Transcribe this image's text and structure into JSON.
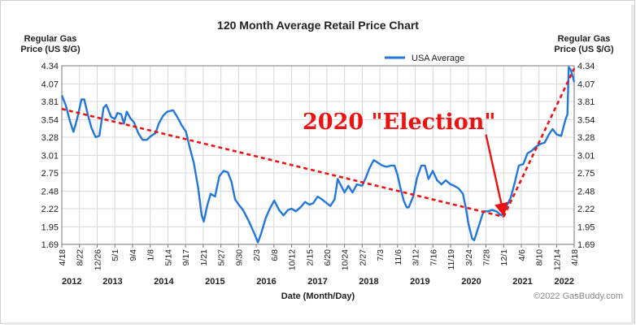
{
  "chart_data": {
    "type": "line",
    "title": "120 Month Average Retail Price Chart",
    "ylabel_left": "Regular Gas\nPrice (US $/G)",
    "ylabel_right": "Regular Gas\nPrice (US $/G)",
    "xlabel": "Date (Month/Day)",
    "legend": {
      "label": "USA Average",
      "placement": "top-center"
    },
    "ylim": [
      1.69,
      4.34
    ],
    "yticks": [
      "4.34",
      "4.07",
      "3.81",
      "3.54",
      "3.28",
      "3.01",
      "2.75",
      "2.48",
      "2.22",
      "1.95",
      "1.69"
    ],
    "ytick_values": [
      4.34,
      4.07,
      3.81,
      3.54,
      3.28,
      3.01,
      2.75,
      2.48,
      2.22,
      1.95,
      1.69
    ],
    "xlim": [
      "2012-04-18",
      "2022-04-18"
    ],
    "xtick_labels": [
      "4/18",
      "8/22",
      "12/26",
      "5/1",
      "9/4",
      "1/8",
      "5/14",
      "9/17",
      "1/21",
      "5/27",
      "9/30",
      "2/3",
      "6/8",
      "10/12",
      "2/15",
      "6/20",
      "10/24",
      "2/27",
      "7/3",
      "11/6",
      "3/12",
      "7/16",
      "11/19",
      "3/24",
      "7/28",
      "12/1",
      "4/6",
      "8/10",
      "12/14",
      "4/18"
    ],
    "xtick_dates": [
      "2012-04-18",
      "2012-08-22",
      "2012-12-26",
      "2013-05-01",
      "2013-09-04",
      "2014-01-08",
      "2014-05-14",
      "2014-09-17",
      "2015-01-21",
      "2015-05-27",
      "2015-09-30",
      "2016-02-03",
      "2016-06-08",
      "2016-10-12",
      "2017-02-15",
      "2017-06-20",
      "2017-10-24",
      "2018-02-27",
      "2018-07-03",
      "2018-11-06",
      "2019-03-12",
      "2019-07-16",
      "2019-11-19",
      "2020-03-24",
      "2020-07-28",
      "2020-12-01",
      "2021-04-06",
      "2021-08-10",
      "2021-12-14",
      "2022-04-18"
    ],
    "year_labels": [
      "2012",
      "2013",
      "2014",
      "2015",
      "2016",
      "2017",
      "2018",
      "2019",
      "2020",
      "2021",
      "2022"
    ],
    "year_positions": [
      "2012-04-18",
      "2013-04-15",
      "2014-04-15",
      "2015-04-15",
      "2016-04-15",
      "2017-04-15",
      "2018-04-15",
      "2019-04-15",
      "2020-04-15",
      "2021-04-15",
      "2022-04-18"
    ],
    "grid": true,
    "series": [
      {
        "name": "USA Average",
        "color": "#2277dd",
        "points": [
          [
            "2012-04-18",
            3.9
          ],
          [
            "2012-05-15",
            3.76
          ],
          [
            "2012-06-15",
            3.52
          ],
          [
            "2012-07-10",
            3.36
          ],
          [
            "2012-08-05",
            3.55
          ],
          [
            "2012-09-05",
            3.84
          ],
          [
            "2012-09-25",
            3.84
          ],
          [
            "2012-10-20",
            3.62
          ],
          [
            "2012-11-15",
            3.42
          ],
          [
            "2012-12-15",
            3.28
          ],
          [
            "2013-01-10",
            3.3
          ],
          [
            "2013-02-10",
            3.72
          ],
          [
            "2013-03-01",
            3.76
          ],
          [
            "2013-04-05",
            3.58
          ],
          [
            "2013-05-01",
            3.55
          ],
          [
            "2013-05-20",
            3.64
          ],
          [
            "2013-06-15",
            3.62
          ],
          [
            "2013-07-05",
            3.48
          ],
          [
            "2013-07-25",
            3.66
          ],
          [
            "2013-08-20",
            3.56
          ],
          [
            "2013-09-15",
            3.5
          ],
          [
            "2013-10-15",
            3.34
          ],
          [
            "2013-11-15",
            3.24
          ],
          [
            "2013-12-15",
            3.24
          ],
          [
            "2014-01-15",
            3.3
          ],
          [
            "2014-02-15",
            3.34
          ],
          [
            "2014-03-10",
            3.48
          ],
          [
            "2014-04-10",
            3.6
          ],
          [
            "2014-05-10",
            3.66
          ],
          [
            "2014-06-20",
            3.68
          ],
          [
            "2014-07-20",
            3.58
          ],
          [
            "2014-08-20",
            3.46
          ],
          [
            "2014-09-20",
            3.36
          ],
          [
            "2014-10-15",
            3.14
          ],
          [
            "2014-11-15",
            2.9
          ],
          [
            "2014-12-15",
            2.54
          ],
          [
            "2015-01-10",
            2.12
          ],
          [
            "2015-01-25",
            2.03
          ],
          [
            "2015-02-20",
            2.28
          ],
          [
            "2015-03-15",
            2.44
          ],
          [
            "2015-04-15",
            2.4
          ],
          [
            "2015-05-15",
            2.7
          ],
          [
            "2015-06-15",
            2.78
          ],
          [
            "2015-07-15",
            2.76
          ],
          [
            "2015-08-10",
            2.62
          ],
          [
            "2015-09-05",
            2.36
          ],
          [
            "2015-10-01",
            2.28
          ],
          [
            "2015-11-01",
            2.2
          ],
          [
            "2015-12-15",
            2.02
          ],
          [
            "2016-01-20",
            1.85
          ],
          [
            "2016-02-15",
            1.72
          ],
          [
            "2016-03-10",
            1.86
          ],
          [
            "2016-04-10",
            2.08
          ],
          [
            "2016-05-10",
            2.22
          ],
          [
            "2016-06-10",
            2.34
          ],
          [
            "2016-07-15",
            2.2
          ],
          [
            "2016-08-15",
            2.12
          ],
          [
            "2016-09-15",
            2.2
          ],
          [
            "2016-10-12",
            2.22
          ],
          [
            "2016-11-10",
            2.18
          ],
          [
            "2016-12-15",
            2.24
          ],
          [
            "2017-01-15",
            2.32
          ],
          [
            "2017-02-15",
            2.28
          ],
          [
            "2017-03-15",
            2.3
          ],
          [
            "2017-04-15",
            2.4
          ],
          [
            "2017-05-15",
            2.36
          ],
          [
            "2017-06-20",
            2.3
          ],
          [
            "2017-07-15",
            2.26
          ],
          [
            "2017-08-15",
            2.36
          ],
          [
            "2017-09-05",
            2.66
          ],
          [
            "2017-09-20",
            2.6
          ],
          [
            "2017-10-24",
            2.46
          ],
          [
            "2017-11-20",
            2.56
          ],
          [
            "2017-12-20",
            2.46
          ],
          [
            "2018-01-20",
            2.58
          ],
          [
            "2018-02-27",
            2.56
          ],
          [
            "2018-03-25",
            2.68
          ],
          [
            "2018-04-20",
            2.82
          ],
          [
            "2018-05-20",
            2.94
          ],
          [
            "2018-06-20",
            2.9
          ],
          [
            "2018-07-20",
            2.86
          ],
          [
            "2018-08-20",
            2.84
          ],
          [
            "2018-09-20",
            2.86
          ],
          [
            "2018-10-15",
            2.86
          ],
          [
            "2018-11-06",
            2.72
          ],
          [
            "2018-11-25",
            2.54
          ],
          [
            "2018-12-20",
            2.34
          ],
          [
            "2019-01-10",
            2.24
          ],
          [
            "2019-01-25",
            2.24
          ],
          [
            "2019-02-25",
            2.4
          ],
          [
            "2019-03-25",
            2.68
          ],
          [
            "2019-04-25",
            2.86
          ],
          [
            "2019-05-20",
            2.86
          ],
          [
            "2019-06-15",
            2.66
          ],
          [
            "2019-07-15",
            2.78
          ],
          [
            "2019-08-15",
            2.64
          ],
          [
            "2019-09-15",
            2.58
          ],
          [
            "2019-10-15",
            2.64
          ],
          [
            "2019-11-19",
            2.58
          ],
          [
            "2019-12-15",
            2.56
          ],
          [
            "2020-01-15",
            2.52
          ],
          [
            "2020-02-15",
            2.44
          ],
          [
            "2020-03-10",
            2.2
          ],
          [
            "2020-03-25",
            2.0
          ],
          [
            "2020-04-20",
            1.78
          ],
          [
            "2020-05-05",
            1.75
          ],
          [
            "2020-06-10",
            1.98
          ],
          [
            "2020-07-10",
            2.18
          ],
          [
            "2020-08-10",
            2.18
          ],
          [
            "2020-09-10",
            2.2
          ],
          [
            "2020-10-10",
            2.18
          ],
          [
            "2020-11-15",
            2.12
          ],
          [
            "2020-12-01",
            2.16
          ],
          [
            "2020-12-20",
            2.25
          ],
          [
            "2021-01-20",
            2.38
          ],
          [
            "2021-02-20",
            2.62
          ],
          [
            "2021-03-20",
            2.86
          ],
          [
            "2021-04-20",
            2.88
          ],
          [
            "2021-05-20",
            3.04
          ],
          [
            "2021-06-20",
            3.08
          ],
          [
            "2021-07-20",
            3.14
          ],
          [
            "2021-08-20",
            3.18
          ],
          [
            "2021-09-20",
            3.2
          ],
          [
            "2021-10-20",
            3.32
          ],
          [
            "2021-11-15",
            3.4
          ],
          [
            "2021-12-14",
            3.32
          ],
          [
            "2022-01-15",
            3.3
          ],
          [
            "2022-02-15",
            3.54
          ],
          [
            "2022-03-01",
            3.62
          ],
          [
            "2022-03-10",
            4.32
          ],
          [
            "2022-03-25",
            4.28
          ],
          [
            "2022-04-18",
            4.1
          ]
        ]
      }
    ],
    "annotations": [
      {
        "text": "2020 \"Election\"",
        "color": "#ee1111"
      },
      {
        "type": "dashed-trendline",
        "color": "#ee1111",
        "points": [
          [
            "2012-04-18",
            3.7
          ],
          [
            "2020-12-01",
            2.1
          ]
        ]
      },
      {
        "type": "dashed-trendline",
        "color": "#ee1111",
        "points": [
          [
            "2020-12-01",
            2.1
          ],
          [
            "2022-04-18",
            4.3
          ]
        ]
      },
      {
        "type": "arrow",
        "color": "#ee1111",
        "points": [
          [
            "2020-07-28",
            3.32
          ],
          [
            "2020-12-01",
            2.14
          ]
        ]
      }
    ],
    "credit": "©2022 GasBuddy.com"
  }
}
